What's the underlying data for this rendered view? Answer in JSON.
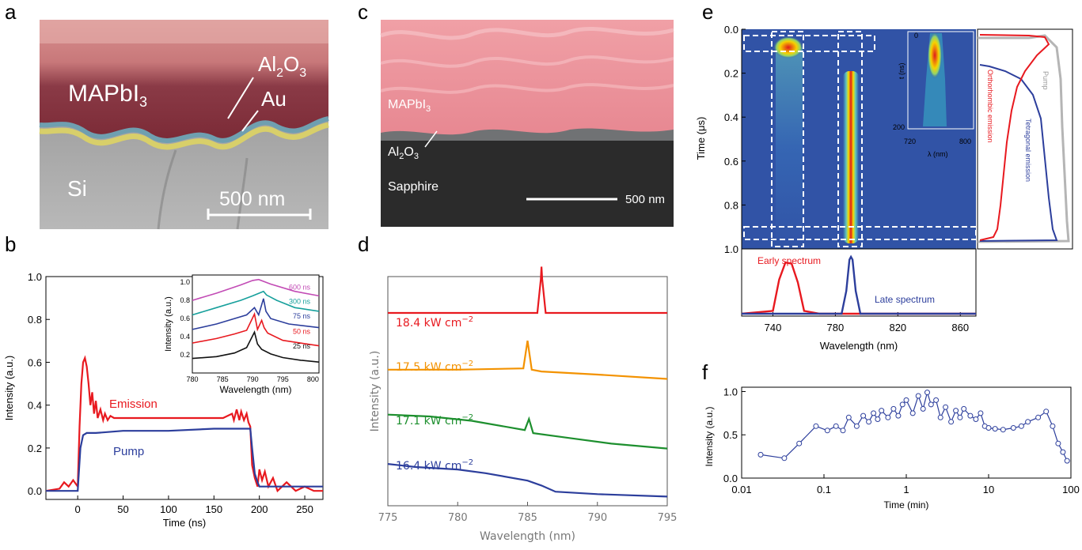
{
  "panel_labels": {
    "a": "a",
    "b": "b",
    "c": "c",
    "d": "d",
    "e": "e",
    "f": "f"
  },
  "colors": {
    "red": "#e8191f",
    "blue": "#2c3e9c",
    "green": "#1d8f2e",
    "orange": "#f39200",
    "black": "#111111",
    "gray": "#b5b5b5",
    "teal": "#17a09c",
    "magenta": "#c24bb5",
    "heat_bg": "#3153a6"
  },
  "sem_a": {
    "mapbi3": "MAPbI",
    "mapbi3_sub": "3",
    "al2o3": "Al",
    "al2o3_sub1": "2",
    "al2o3_o": "O",
    "al2o3_sub2": "3",
    "au": "Au",
    "si": "Si",
    "scalebar": "500 nm"
  },
  "sem_c": {
    "mapbi3": "MAPbI",
    "mapbi3_sub": "3",
    "al2o3": "Al",
    "al2o3_sub1": "2",
    "al2o3_o": "O",
    "al2o3_sub2": "3",
    "sapphire": "Sapphire",
    "scalebar": "500 nm"
  },
  "chart_data": [
    {
      "panel": "b",
      "type": "line",
      "xlabel": "Time (ns)",
      "ylabel": "Intensity (a.u.)",
      "xlim": [
        -35,
        270
      ],
      "ylim": [
        -0.04,
        1.0
      ],
      "xticks": [
        "0",
        "50",
        "100",
        "150",
        "200",
        "250"
      ],
      "yticks": [
        "0.0",
        "0.2",
        "0.4",
        "0.6",
        "0.8",
        "1.0"
      ],
      "annotations": [
        "Emission",
        "Pump"
      ],
      "series": [
        {
          "name": "Emission",
          "color": "red",
          "x": [
            -35,
            -20,
            -15,
            -10,
            -5,
            0,
            2,
            4,
            6,
            8,
            10,
            12,
            14,
            16,
            18,
            20,
            22,
            25,
            28,
            30,
            33,
            36,
            40,
            50,
            60,
            80,
            100,
            120,
            140,
            160,
            170,
            172,
            175,
            178,
            180,
            183,
            186,
            188,
            190,
            192,
            195,
            198,
            200,
            203,
            206,
            210,
            215,
            220,
            230,
            240,
            250,
            260,
            270
          ],
          "y": [
            0,
            0.01,
            0.04,
            0.02,
            0.05,
            0.02,
            0.3,
            0.5,
            0.6,
            0.62,
            0.58,
            0.5,
            0.4,
            0.46,
            0.36,
            0.42,
            0.34,
            0.38,
            0.33,
            0.36,
            0.33,
            0.35,
            0.34,
            0.34,
            0.34,
            0.34,
            0.34,
            0.34,
            0.34,
            0.34,
            0.36,
            0.33,
            0.38,
            0.33,
            0.37,
            0.33,
            0.36,
            0.32,
            0.3,
            0.12,
            0.06,
            0.02,
            0.1,
            0.05,
            0.09,
            0.02,
            0.06,
            0.0,
            0.04,
            0.0,
            0.02,
            0.0,
            0.0
          ]
        },
        {
          "name": "Pump",
          "color": "blue",
          "x": [
            -35,
            -5,
            0,
            3,
            6,
            10,
            20,
            50,
            100,
            150,
            185,
            190,
            192,
            195,
            198,
            200,
            210,
            230,
            270
          ],
          "y": [
            0,
            0,
            0.0,
            0.2,
            0.26,
            0.27,
            0.27,
            0.28,
            0.28,
            0.29,
            0.29,
            0.29,
            0.2,
            0.08,
            0.04,
            0.02,
            0.02,
            0.02,
            0.02
          ]
        }
      ],
      "inset": {
        "xlabel": "Wavelength (nm)",
        "ylabel": "Intensity (a.u.)",
        "xlim": [
          780,
          801
        ],
        "ylim": [
          0,
          1.08
        ],
        "xticks": [
          "780",
          "785",
          "790",
          "795",
          "800"
        ],
        "yticks": [
          "0.2",
          "0.4",
          "0.6",
          "0.8",
          "1.0"
        ],
        "series": [
          {
            "name": "600 ns",
            "color": "magenta",
            "x": [
              780,
              784,
              788,
              790,
              791,
              793,
              797,
              801
            ],
            "y": [
              0.8,
              0.88,
              0.97,
              1.02,
              1.03,
              0.98,
              0.9,
              0.85
            ]
          },
          {
            "name": "300 ns",
            "color": "teal",
            "x": [
              780,
              784,
              788,
              790,
              791.8,
              792.3,
              794,
              797,
              801
            ],
            "y": [
              0.64,
              0.72,
              0.8,
              0.85,
              0.9,
              0.86,
              0.8,
              0.72,
              0.68
            ]
          },
          {
            "name": "75 ns",
            "color": "blue",
            "x": [
              780,
              784,
              787,
              789,
              790.3,
              791,
              791.8,
              792.2,
              793,
              796,
              801
            ],
            "y": [
              0.48,
              0.54,
              0.6,
              0.64,
              0.72,
              0.64,
              0.82,
              0.68,
              0.6,
              0.54,
              0.5
            ]
          },
          {
            "name": "50 ns",
            "color": "red",
            "x": [
              780,
              784,
              787,
              789,
              790.3,
              790.8,
              791.5,
              791.9,
              792.5,
              795,
              801
            ],
            "y": [
              0.33,
              0.38,
              0.43,
              0.47,
              0.65,
              0.48,
              0.58,
              0.5,
              0.44,
              0.36,
              0.3
            ]
          },
          {
            "name": "25 ns",
            "color": "black",
            "x": [
              780,
              784,
              787,
              789,
              790.3,
              790.8,
              791.5,
              793,
              795,
              798,
              801
            ],
            "y": [
              0.16,
              0.18,
              0.22,
              0.28,
              0.45,
              0.32,
              0.26,
              0.21,
              0.17,
              0.14,
              0.12
            ]
          }
        ]
      }
    },
    {
      "panel": "d",
      "type": "line",
      "xlabel": "Wavelength (nm)",
      "ylabel": "Intensity (a.u.)",
      "xlim": [
        775,
        795
      ],
      "xticks": [
        "775",
        "780",
        "785",
        "790",
        "795"
      ],
      "series": [
        {
          "name": "18.4 kW cm",
          "exp": "−2",
          "color": "red",
          "x": [
            775,
            785.7,
            785.95,
            786,
            786.05,
            786.3,
            795
          ],
          "y": [
            3.0,
            3.0,
            3.55,
            3.75,
            3.55,
            3.0,
            3.0
          ]
        },
        {
          "name": "17.5 kW cm",
          "exp": "−2",
          "color": "orange",
          "x": [
            775,
            780,
            784.7,
            785,
            785.3,
            786,
            790,
            795
          ],
          "y": [
            2.08,
            2.08,
            2.1,
            2.55,
            2.08,
            2.05,
            2.0,
            1.93
          ]
        },
        {
          "name": "17.1 kW cm",
          "exp": "−2",
          "color": "green",
          "x": [
            775,
            778,
            781,
            784.8,
            785.1,
            785.4,
            788,
            791,
            795
          ],
          "y": [
            1.35,
            1.32,
            1.25,
            1.1,
            1.28,
            1.05,
            0.97,
            0.88,
            0.8
          ]
        },
        {
          "name": "16.4 kW cm",
          "exp": "−2",
          "color": "blue",
          "x": [
            775,
            777,
            780,
            782,
            785,
            786,
            787,
            790,
            795
          ],
          "y": [
            0.55,
            0.5,
            0.46,
            0.4,
            0.28,
            0.2,
            0.1,
            0.06,
            0.02
          ]
        }
      ]
    },
    {
      "panel": "e",
      "type": "heatmap",
      "ylabel": "Time (μs)",
      "ylim": [
        0,
        1.0
      ],
      "yticks": [
        "0.0",
        "0.2",
        "0.4",
        "0.6",
        "0.8",
        "1.0"
      ],
      "streak_bands": [
        {
          "center_nm": 750,
          "t_peak": 0.08
        },
        {
          "center_nm": 790,
          "t_peak": 0.5
        }
      ],
      "inset": {
        "xlabel": "λ (nm)",
        "ylabel": "t (ns)",
        "xticks": [
          "720",
          "800"
        ],
        "yticks": [
          "0",
          "200"
        ]
      },
      "profiles": [
        "Pump",
        "Orthorhombic emission",
        "Tetragonal emission"
      ],
      "spectrum": {
        "xlabel": "Wavelength (nm)",
        "xlim": [
          720,
          870
        ],
        "xticks": [
          "740",
          "780",
          "820",
          "860"
        ],
        "series": [
          {
            "name": "Early spectrum",
            "color": "red",
            "x": [
              720,
              740,
              744,
              748,
              752,
              756,
              760,
              770,
              870
            ],
            "y": [
              0,
              0.05,
              0.6,
              0.9,
              0.88,
              0.55,
              0.05,
              0,
              0
            ]
          },
          {
            "name": "Late spectrum",
            "color": "blue",
            "x": [
              720,
              784,
              787,
              789,
              790,
              791,
              793,
              796,
              870
            ],
            "y": [
              0,
              0,
              0.4,
              0.95,
              1.0,
              0.95,
              0.4,
              0,
              0
            ]
          }
        ]
      }
    },
    {
      "panel": "f",
      "type": "scatter",
      "xlabel": "Time (min)",
      "ylabel": "Intensity (a.u.)",
      "xscale": "log",
      "xlim": [
        0.01,
        100
      ],
      "ylim": [
        0,
        1.05
      ],
      "xticks": [
        "0.01",
        "0.1",
        "1",
        "10",
        "100"
      ],
      "yticks": [
        "0.0",
        "0.5",
        "1.0"
      ],
      "x": [
        0.017,
        0.033,
        0.05,
        0.08,
        0.11,
        0.14,
        0.17,
        0.2,
        0.25,
        0.3,
        0.35,
        0.4,
        0.45,
        0.5,
        0.6,
        0.7,
        0.8,
        0.9,
        1.0,
        1.2,
        1.4,
        1.6,
        1.8,
        2.0,
        2.3,
        2.6,
        3.0,
        3.5,
        4.0,
        4.5,
        5.0,
        6.0,
        7.0,
        8.0,
        9.0,
        10,
        12,
        15,
        20,
        25,
        30,
        40,
        50,
        60,
        70,
        80,
        90
      ],
      "y": [
        0.27,
        0.23,
        0.4,
        0.6,
        0.55,
        0.6,
        0.55,
        0.7,
        0.6,
        0.72,
        0.65,
        0.75,
        0.68,
        0.78,
        0.7,
        0.8,
        0.72,
        0.85,
        0.9,
        0.75,
        0.95,
        0.8,
        0.99,
        0.85,
        0.9,
        0.7,
        0.82,
        0.65,
        0.78,
        0.7,
        0.8,
        0.72,
        0.68,
        0.75,
        0.6,
        0.58,
        0.57,
        0.56,
        0.58,
        0.6,
        0.65,
        0.7,
        0.77,
        0.6,
        0.4,
        0.3,
        0.2
      ]
    }
  ]
}
